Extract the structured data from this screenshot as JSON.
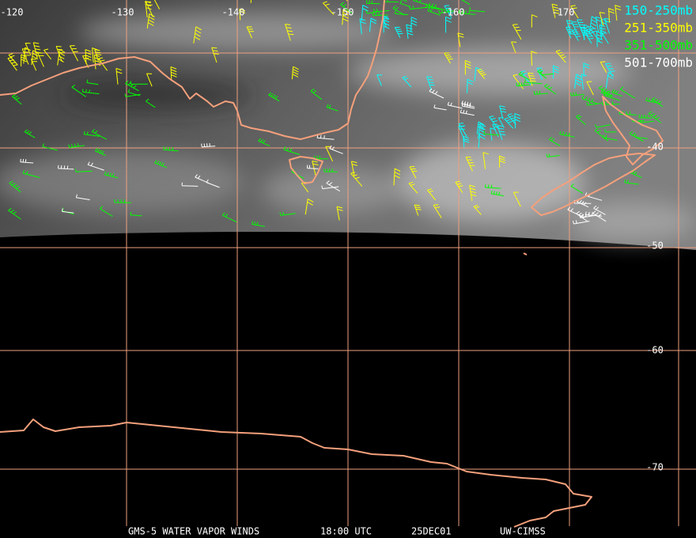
{
  "map": {
    "lon_labels": [
      "-120",
      "-130",
      "-140",
      "-150",
      "-160",
      "-170"
    ],
    "lat_labels": [
      "-40",
      "-50",
      "-60",
      "-70"
    ],
    "legend": [
      {
        "label": "150-250mb",
        "color": "#00ffff"
      },
      {
        "label": "251-350mb",
        "color": "#ffff00"
      },
      {
        "label": "351-500mb",
        "color": "#00ff00"
      },
      {
        "label": "501-700mb",
        "color": "#ffffff"
      }
    ],
    "footer": [
      "GMS-5 WATER VAPOR WINDS",
      "18:00 UTC",
      "25DEC01",
      "UW-CIMSS"
    ]
  }
}
